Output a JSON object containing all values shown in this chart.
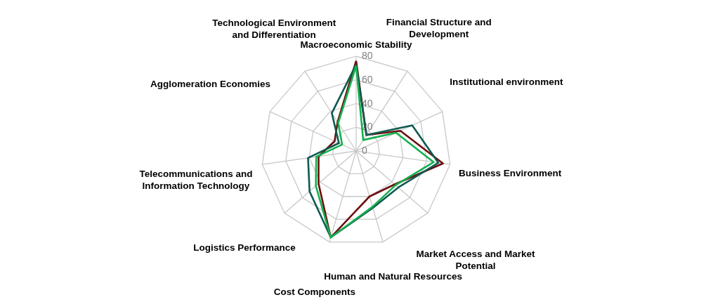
{
  "chart_data": {
    "type": "radar",
    "categories": [
      "Macroeconomic Stability",
      "Financial Structure and Development",
      "Institutional environment",
      "Business Environment",
      "Market Access and Market Potential",
      "Human and Natural Resources",
      "Cost Components",
      "Logistics Performance",
      "Telecommunications and Information Technology",
      "Agglomeration Economies",
      "Technological Environment and Differentiation"
    ],
    "series": [
      {
        "color": "#6b0e0e",
        "values": [
          76,
          16,
          41,
          74,
          43,
          40,
          76,
          42,
          32,
          20,
          29
        ]
      },
      {
        "color": "#0f5a4f",
        "values": [
          73,
          16,
          52,
          70,
          47,
          50,
          76,
          52,
          41,
          16,
          38
        ]
      },
      {
        "color": "#13b04f",
        "values": [
          72,
          11,
          37,
          66,
          44,
          49,
          76,
          45,
          34,
          13,
          28
        ]
      }
    ],
    "ylim": [
      0,
      80
    ],
    "yticks": [
      0,
      20,
      40,
      60,
      80
    ],
    "grid": true
  }
}
